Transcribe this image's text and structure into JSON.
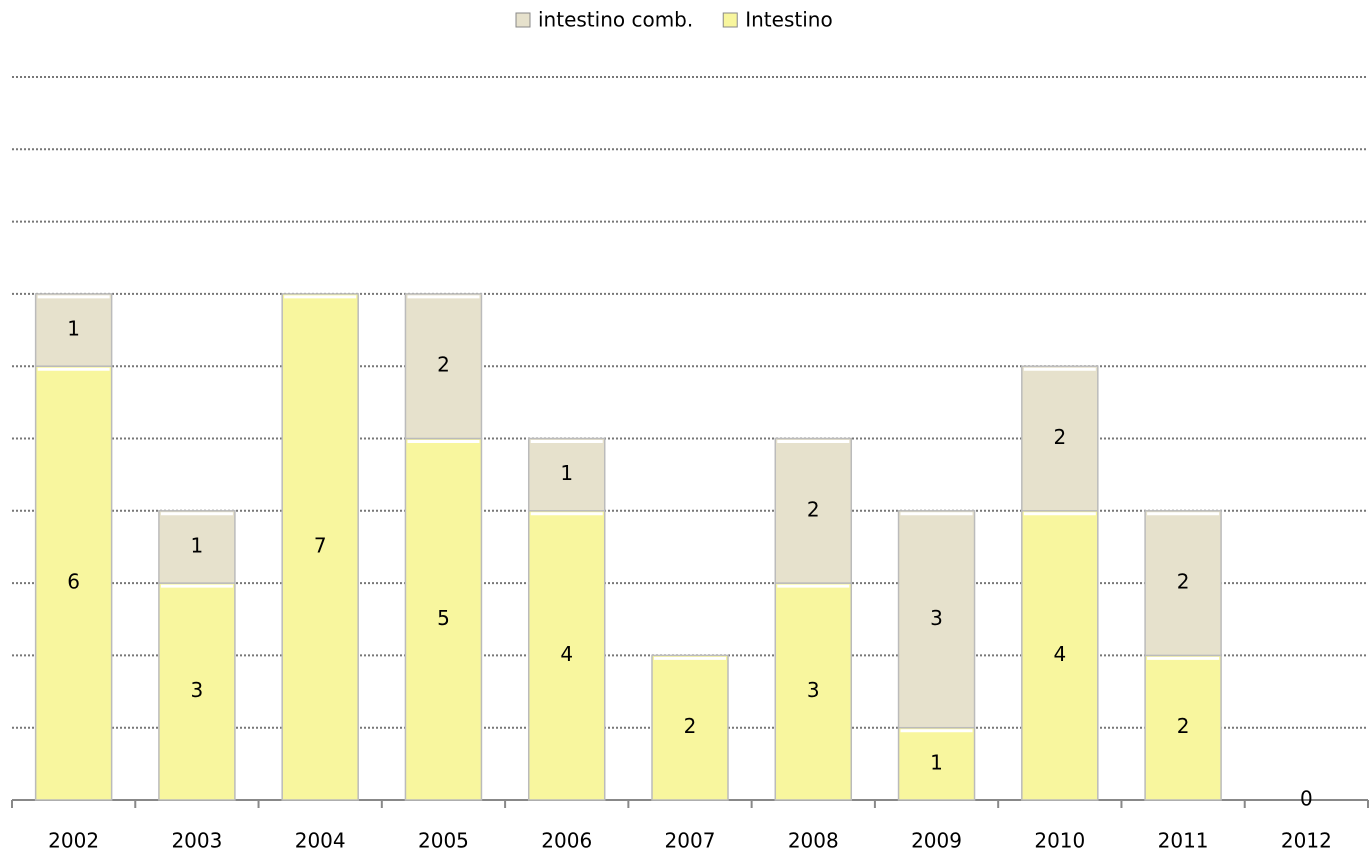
{
  "chart_data": {
    "type": "bar",
    "stacked": true,
    "categories": [
      "2002",
      "2003",
      "2004",
      "2005",
      "2006",
      "2007",
      "2008",
      "2009",
      "2010",
      "2011",
      "2012"
    ],
    "series": [
      {
        "name": "intestino comb.",
        "color": "#e6e1cc",
        "values": [
          1,
          1,
          null,
          2,
          1,
          null,
          2,
          3,
          2,
          2,
          null
        ]
      },
      {
        "name": "Intestino",
        "color": "#f8f69e",
        "values": [
          6,
          3,
          7,
          5,
          4,
          2,
          3,
          1,
          4,
          2,
          0
        ]
      }
    ],
    "ylim": [
      0,
      10
    ],
    "yticks": [
      0,
      1,
      2,
      3,
      4,
      5,
      6,
      7,
      8,
      9,
      10
    ],
    "grid": true,
    "legend": "top"
  }
}
